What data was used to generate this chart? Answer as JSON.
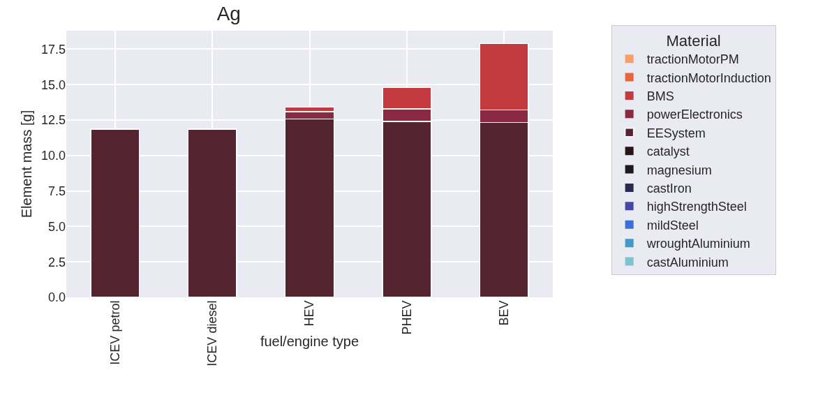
{
  "chart_data": {
    "type": "bar",
    "title": "Ag",
    "xlabel": "fuel/engine type",
    "ylabel": "Element mass [g]",
    "legend_title": "Material",
    "categories": [
      "ICEV petrol",
      "ICEV diesel",
      "HEV",
      "PHEV",
      "BEV"
    ],
    "stacked": true,
    "ylim": [
      0,
      18.8
    ],
    "yticks": [
      {
        "value": 0,
        "label": "0.0"
      },
      {
        "value": 2.5,
        "label": "2.5"
      },
      {
        "value": 5,
        "label": "5.0"
      },
      {
        "value": 7.5,
        "label": "7.5"
      },
      {
        "value": 10,
        "label": "10.0"
      },
      {
        "value": 12.5,
        "label": "12.5"
      },
      {
        "value": 15,
        "label": "15.0"
      },
      {
        "value": 17.5,
        "label": "17.5"
      }
    ],
    "grid": true,
    "legend": "right",
    "series": [
      {
        "name": "castAluminium",
        "color": "#7fc4cc",
        "values": [
          0,
          0,
          0,
          0,
          0
        ]
      },
      {
        "name": "wroughtAluminium",
        "color": "#4299c9",
        "values": [
          0,
          0,
          0,
          0,
          0
        ]
      },
      {
        "name": "mildSteel",
        "color": "#3a6fd6",
        "values": [
          0,
          0,
          0,
          0,
          0
        ]
      },
      {
        "name": "highStrengthSteel",
        "color": "#4646a4",
        "values": [
          0,
          0,
          0,
          0,
          0
        ]
      },
      {
        "name": "castIron",
        "color": "#2d2a4f",
        "values": [
          0,
          0,
          0,
          0,
          0
        ]
      },
      {
        "name": "magnesium",
        "color": "#1c1a20",
        "values": [
          0,
          0,
          0,
          0,
          0
        ]
      },
      {
        "name": "catalyst",
        "color": "#261618",
        "values": [
          0,
          0,
          0,
          0,
          0
        ]
      },
      {
        "name": "EESystem",
        "color": "#552431",
        "values": [
          11.86,
          11.86,
          12.58,
          12.4,
          12.34
        ]
      },
      {
        "name": "powerElectronics",
        "color": "#8a2a42",
        "values": [
          0,
          0,
          0.52,
          0.9,
          0.88
        ]
      },
      {
        "name": "BMS",
        "color": "#c23a3d",
        "values": [
          0,
          0,
          0.31,
          1.49,
          4.68
        ]
      },
      {
        "name": "tractionMotorInduction",
        "color": "#e8653a",
        "values": [
          0,
          0,
          0,
          0,
          0
        ]
      },
      {
        "name": "tractionMotorPM",
        "color": "#f4a06a",
        "values": [
          0,
          0,
          0,
          0,
          0
        ]
      }
    ]
  }
}
